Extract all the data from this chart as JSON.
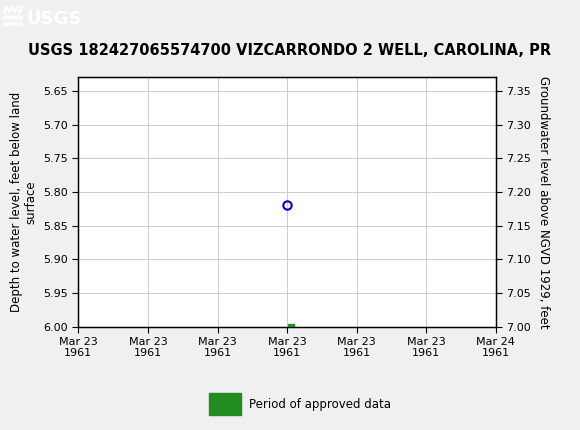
{
  "title": "USGS 182427065574700 VIZCARRONDO 2 WELL, CAROLINA, PR",
  "ylabel_left": "Depth to water level, feet below land\nsurface",
  "ylabel_right": "Groundwater level above NGVD 1929, feet",
  "ylim_left": [
    6.0,
    5.63
  ],
  "ylim_right": [
    7.0,
    7.37
  ],
  "yticks_left": [
    5.65,
    5.7,
    5.75,
    5.8,
    5.85,
    5.9,
    5.95,
    6.0
  ],
  "yticks_right": [
    7.35,
    7.3,
    7.25,
    7.2,
    7.15,
    7.1,
    7.05,
    7.0
  ],
  "xlim": [
    0,
    6
  ],
  "xtick_labels": [
    "Mar 23\n1961",
    "Mar 23\n1961",
    "Mar 23\n1961",
    "Mar 23\n1961",
    "Mar 23\n1961",
    "Mar 23\n1961",
    "Mar 24\n1961"
  ],
  "xtick_positions": [
    0,
    1,
    2,
    3,
    4,
    5,
    6
  ],
  "grid_color": "#cccccc",
  "background_color": "#f0f0f0",
  "plot_bg_color": "#ffffff",
  "header_color": "#1a6b3c",
  "data_point_x": 3.0,
  "data_point_y": 5.82,
  "data_point_color": "#0000cc",
  "approved_x": 3.05,
  "approved_y": 6.0,
  "approved_color": "#228B22",
  "legend_label": "Period of approved data",
  "title_fontsize": 10.5,
  "tick_fontsize": 8,
  "label_fontsize": 8.5,
  "header_text": "USGS",
  "header_fontsize": 13
}
